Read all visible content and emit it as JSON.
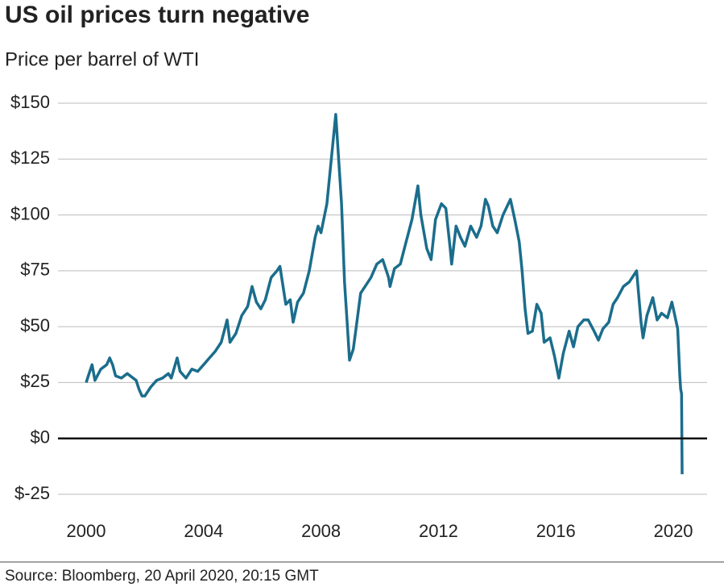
{
  "chart_data": {
    "type": "line",
    "title": "US oil prices turn negative",
    "subtitle": "Price per barrel of WTI",
    "source": "Source: Bloomberg, 20 April 2020, 20:15 GMT",
    "grid": true,
    "xlim": [
      1999.04,
      2021.15
    ],
    "xticks": [
      2000,
      2004,
      2008,
      2012,
      2016,
      2020
    ],
    "ylim": [
      -25,
      150
    ],
    "yticks": [
      {
        "value": -25,
        "label": "$-25"
      },
      {
        "value": 0,
        "label": "$0"
      },
      {
        "value": 25,
        "label": "$25"
      },
      {
        "value": 50,
        "label": "$50"
      },
      {
        "value": 75,
        "label": "$75"
      },
      {
        "value": 100,
        "label": "$100"
      },
      {
        "value": 125,
        "label": "$125"
      },
      {
        "value": 150,
        "label": "$150"
      }
    ],
    "x": [
      2000.0,
      2000.1,
      2000.2,
      2000.3,
      2000.5,
      2000.7,
      2000.8,
      2000.9,
      2001.0,
      2001.2,
      2001.4,
      2001.6,
      2001.7,
      2001.8,
      2001.9,
      2002.0,
      2002.2,
      2002.4,
      2002.6,
      2002.8,
      2002.9,
      2003.1,
      2003.2,
      2003.4,
      2003.6,
      2003.8,
      2004.0,
      2004.2,
      2004.4,
      2004.6,
      2004.8,
      2004.9,
      2005.1,
      2005.3,
      2005.5,
      2005.65,
      2005.8,
      2005.95,
      2006.1,
      2006.3,
      2006.5,
      2006.6,
      2006.8,
      2006.95,
      2007.05,
      2007.2,
      2007.4,
      2007.6,
      2007.8,
      2007.9,
      2008.0,
      2008.2,
      2008.35,
      2008.5,
      2008.6,
      2008.7,
      2008.8,
      2008.9,
      2008.97,
      2009.1,
      2009.2,
      2009.35,
      2009.5,
      2009.7,
      2009.9,
      2010.1,
      2010.3,
      2010.35,
      2010.5,
      2010.7,
      2010.9,
      2011.1,
      2011.3,
      2011.4,
      2011.6,
      2011.75,
      2011.9,
      2012.1,
      2012.25,
      2012.4,
      2012.45,
      2012.6,
      2012.75,
      2012.9,
      2013.1,
      2013.3,
      2013.45,
      2013.6,
      2013.7,
      2013.85,
      2014.0,
      2014.2,
      2014.45,
      2014.6,
      2014.75,
      2014.85,
      2014.95,
      2015.05,
      2015.2,
      2015.35,
      2015.5,
      2015.6,
      2015.8,
      2015.95,
      2016.1,
      2016.25,
      2016.45,
      2016.6,
      2016.75,
      2016.95,
      2017.1,
      2017.3,
      2017.45,
      2017.6,
      2017.8,
      2017.95,
      2018.1,
      2018.3,
      2018.5,
      2018.75,
      2018.9,
      2018.97,
      2019.1,
      2019.3,
      2019.45,
      2019.6,
      2019.8,
      2019.95,
      2020.05,
      2020.15,
      2020.22,
      2020.25,
      2020.28,
      2020.3
    ],
    "series": [
      {
        "name": "WTI",
        "color": "#1b6d8c",
        "values": [
          25,
          29,
          33,
          26,
          31,
          33,
          36,
          33,
          28,
          27,
          29,
          27,
          26,
          22,
          19,
          19,
          23,
          26,
          27,
          29,
          27,
          36,
          30,
          27,
          31,
          30,
          33,
          36,
          39,
          43,
          53,
          43,
          47,
          55,
          59,
          68,
          61,
          58,
          62,
          72,
          75,
          77,
          60,
          62,
          52,
          61,
          65,
          75,
          90,
          95,
          92,
          105,
          125,
          145,
          125,
          105,
          70,
          50,
          35,
          40,
          50,
          65,
          68,
          72,
          78,
          80,
          72,
          68,
          76,
          78,
          88,
          98,
          113,
          100,
          85,
          80,
          98,
          105,
          103,
          85,
          78,
          95,
          90,
          86,
          95,
          90,
          95,
          107,
          104,
          95,
          92,
          100,
          107,
          98,
          88,
          75,
          58,
          47,
          48,
          60,
          56,
          43,
          45,
          37,
          27,
          38,
          48,
          41,
          50,
          53,
          53,
          48,
          44,
          49,
          52,
          60,
          63,
          68,
          70,
          75,
          52,
          45,
          55,
          63,
          53,
          56,
          54,
          61,
          55,
          49,
          28,
          22,
          20,
          -16
        ]
      }
    ]
  }
}
